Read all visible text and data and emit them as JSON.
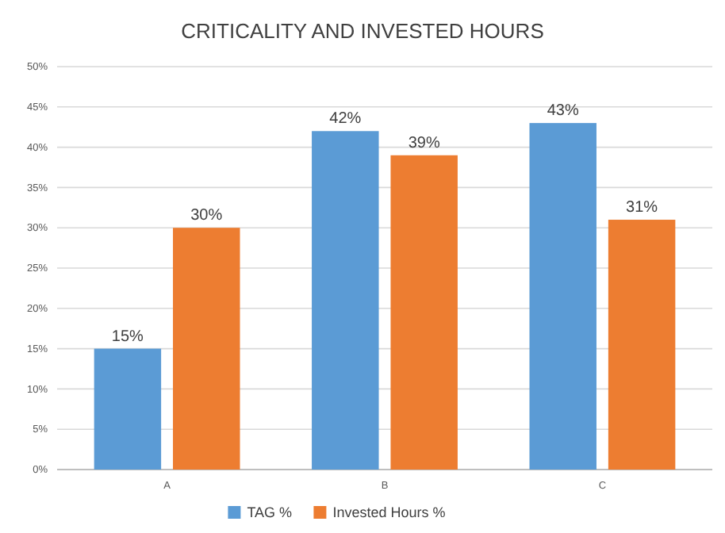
{
  "chart_data": {
    "type": "bar",
    "title": "CRITICALITY AND INVESTED HOURS",
    "categories": [
      "A",
      "B",
      "C"
    ],
    "series": [
      {
        "name": "TAG %",
        "color": "#5b9bd5",
        "values": [
          15,
          42,
          43
        ],
        "value_labels": [
          "15%",
          "42%",
          "43%"
        ]
      },
      {
        "name": "Invested Hours %",
        "color": "#ed7d31",
        "values": [
          30,
          39,
          31
        ],
        "value_labels": [
          "30%",
          "39%",
          "31%"
        ]
      }
    ],
    "ylim": [
      0,
      50
    ],
    "yticks": [
      {
        "value": 0,
        "label": "0%"
      },
      {
        "value": 5,
        "label": "5%"
      },
      {
        "value": 10,
        "label": "10%"
      },
      {
        "value": 15,
        "label": "15%"
      },
      {
        "value": 20,
        "label": "20%"
      },
      {
        "value": 25,
        "label": "25%"
      },
      {
        "value": 30,
        "label": "30%"
      },
      {
        "value": 35,
        "label": "35%"
      },
      {
        "value": 40,
        "label": "40%"
      },
      {
        "value": 45,
        "label": "45%"
      },
      {
        "value": 50,
        "label": "50%"
      }
    ],
    "grid": "y",
    "legend": "bottom"
  }
}
